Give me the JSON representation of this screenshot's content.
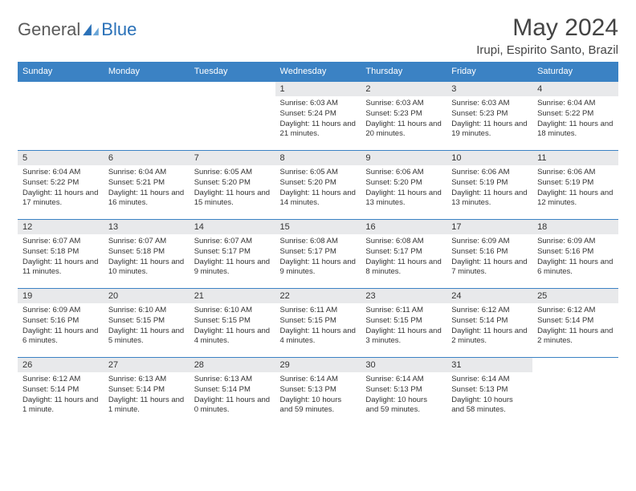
{
  "brand": {
    "part1": "General",
    "part2": "Blue"
  },
  "title": "May 2024",
  "location": "Irupi, Espirito Santo, Brazil",
  "colors": {
    "header_bg": "#3b82c4",
    "header_text": "#ffffff",
    "daynum_bg": "#e8e9eb",
    "border": "#3b82c4",
    "brand_gray": "#5a5a5a",
    "brand_blue": "#2a71b8"
  },
  "weekdays": [
    "Sunday",
    "Monday",
    "Tuesday",
    "Wednesday",
    "Thursday",
    "Friday",
    "Saturday"
  ],
  "weeks": [
    [
      {
        "n": "",
        "sr": "",
        "ss": "",
        "dl": ""
      },
      {
        "n": "",
        "sr": "",
        "ss": "",
        "dl": ""
      },
      {
        "n": "",
        "sr": "",
        "ss": "",
        "dl": ""
      },
      {
        "n": "1",
        "sr": "6:03 AM",
        "ss": "5:24 PM",
        "dl": "11 hours and 21 minutes."
      },
      {
        "n": "2",
        "sr": "6:03 AM",
        "ss": "5:23 PM",
        "dl": "11 hours and 20 minutes."
      },
      {
        "n": "3",
        "sr": "6:03 AM",
        "ss": "5:23 PM",
        "dl": "11 hours and 19 minutes."
      },
      {
        "n": "4",
        "sr": "6:04 AM",
        "ss": "5:22 PM",
        "dl": "11 hours and 18 minutes."
      }
    ],
    [
      {
        "n": "5",
        "sr": "6:04 AM",
        "ss": "5:22 PM",
        "dl": "11 hours and 17 minutes."
      },
      {
        "n": "6",
        "sr": "6:04 AM",
        "ss": "5:21 PM",
        "dl": "11 hours and 16 minutes."
      },
      {
        "n": "7",
        "sr": "6:05 AM",
        "ss": "5:20 PM",
        "dl": "11 hours and 15 minutes."
      },
      {
        "n": "8",
        "sr": "6:05 AM",
        "ss": "5:20 PM",
        "dl": "11 hours and 14 minutes."
      },
      {
        "n": "9",
        "sr": "6:06 AM",
        "ss": "5:20 PM",
        "dl": "11 hours and 13 minutes."
      },
      {
        "n": "10",
        "sr": "6:06 AM",
        "ss": "5:19 PM",
        "dl": "11 hours and 13 minutes."
      },
      {
        "n": "11",
        "sr": "6:06 AM",
        "ss": "5:19 PM",
        "dl": "11 hours and 12 minutes."
      }
    ],
    [
      {
        "n": "12",
        "sr": "6:07 AM",
        "ss": "5:18 PM",
        "dl": "11 hours and 11 minutes."
      },
      {
        "n": "13",
        "sr": "6:07 AM",
        "ss": "5:18 PM",
        "dl": "11 hours and 10 minutes."
      },
      {
        "n": "14",
        "sr": "6:07 AM",
        "ss": "5:17 PM",
        "dl": "11 hours and 9 minutes."
      },
      {
        "n": "15",
        "sr": "6:08 AM",
        "ss": "5:17 PM",
        "dl": "11 hours and 9 minutes."
      },
      {
        "n": "16",
        "sr": "6:08 AM",
        "ss": "5:17 PM",
        "dl": "11 hours and 8 minutes."
      },
      {
        "n": "17",
        "sr": "6:09 AM",
        "ss": "5:16 PM",
        "dl": "11 hours and 7 minutes."
      },
      {
        "n": "18",
        "sr": "6:09 AM",
        "ss": "5:16 PM",
        "dl": "11 hours and 6 minutes."
      }
    ],
    [
      {
        "n": "19",
        "sr": "6:09 AM",
        "ss": "5:16 PM",
        "dl": "11 hours and 6 minutes."
      },
      {
        "n": "20",
        "sr": "6:10 AM",
        "ss": "5:15 PM",
        "dl": "11 hours and 5 minutes."
      },
      {
        "n": "21",
        "sr": "6:10 AM",
        "ss": "5:15 PM",
        "dl": "11 hours and 4 minutes."
      },
      {
        "n": "22",
        "sr": "6:11 AM",
        "ss": "5:15 PM",
        "dl": "11 hours and 4 minutes."
      },
      {
        "n": "23",
        "sr": "6:11 AM",
        "ss": "5:15 PM",
        "dl": "11 hours and 3 minutes."
      },
      {
        "n": "24",
        "sr": "6:12 AM",
        "ss": "5:14 PM",
        "dl": "11 hours and 2 minutes."
      },
      {
        "n": "25",
        "sr": "6:12 AM",
        "ss": "5:14 PM",
        "dl": "11 hours and 2 minutes."
      }
    ],
    [
      {
        "n": "26",
        "sr": "6:12 AM",
        "ss": "5:14 PM",
        "dl": "11 hours and 1 minute."
      },
      {
        "n": "27",
        "sr": "6:13 AM",
        "ss": "5:14 PM",
        "dl": "11 hours and 1 minute."
      },
      {
        "n": "28",
        "sr": "6:13 AM",
        "ss": "5:14 PM",
        "dl": "11 hours and 0 minutes."
      },
      {
        "n": "29",
        "sr": "6:14 AM",
        "ss": "5:13 PM",
        "dl": "10 hours and 59 minutes."
      },
      {
        "n": "30",
        "sr": "6:14 AM",
        "ss": "5:13 PM",
        "dl": "10 hours and 59 minutes."
      },
      {
        "n": "31",
        "sr": "6:14 AM",
        "ss": "5:13 PM",
        "dl": "10 hours and 58 minutes."
      },
      {
        "n": "",
        "sr": "",
        "ss": "",
        "dl": ""
      }
    ]
  ],
  "labels": {
    "sunrise": "Sunrise:",
    "sunset": "Sunset:",
    "daylight": "Daylight:"
  }
}
